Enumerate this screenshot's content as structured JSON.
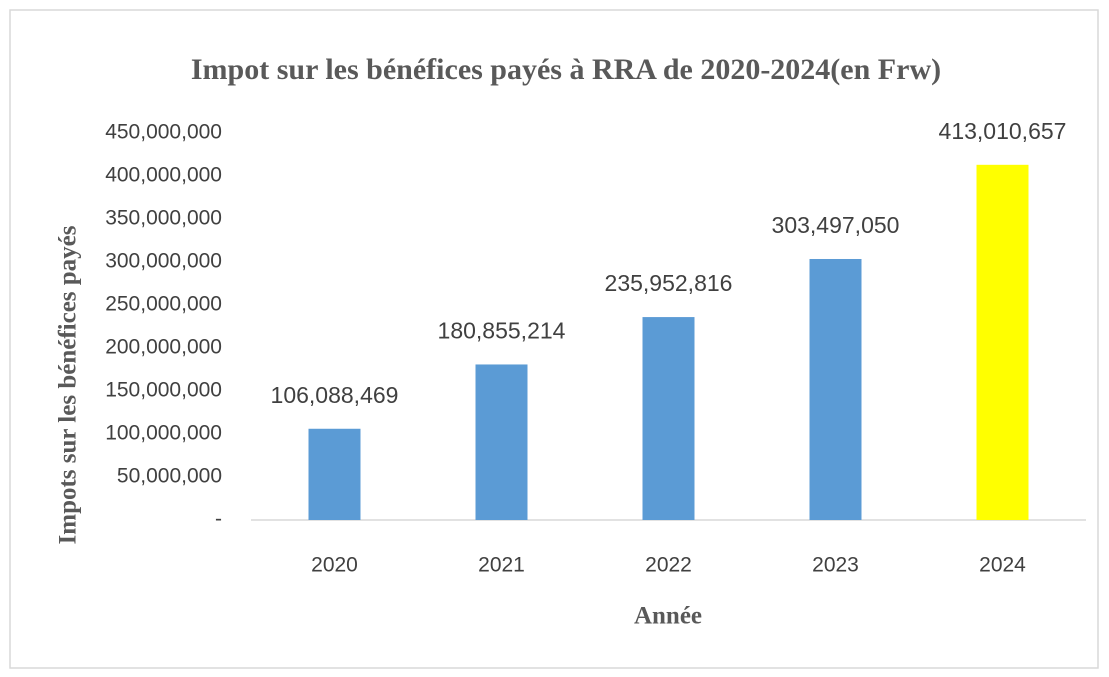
{
  "chart_data": {
    "type": "bar",
    "title": "Impot sur les bénéfices payés à RRA de 2020-2024(en Frw)",
    "x_label": "Année",
    "y_label": "Impots  sur  les bénéfices payés",
    "categories": [
      "2020",
      "2021",
      "2022",
      "2023",
      "2024"
    ],
    "values": [
      106088469,
      180855214,
      235952816,
      303497050,
      413010657
    ],
    "value_labels": [
      "106,088,469",
      "180,855,214",
      "235,952,816",
      "303,497,050",
      "413,010,657"
    ],
    "colors": [
      "#5b9bd5",
      "#5b9bd5",
      "#5b9bd5",
      "#5b9bd5",
      "#ffff00"
    ],
    "ylim": [
      0,
      450000000
    ],
    "yticks": [
      {
        "value": 0,
        "label": "-"
      },
      {
        "value": 50000000,
        "label": "50,000,000"
      },
      {
        "value": 100000000,
        "label": "100,000,000"
      },
      {
        "value": 150000000,
        "label": "150,000,000"
      },
      {
        "value": 200000000,
        "label": "200,000,000"
      },
      {
        "value": 250000000,
        "label": "250,000,000"
      },
      {
        "value": 300000000,
        "label": "300,000,000"
      },
      {
        "value": 350000000,
        "label": "350,000,000"
      },
      {
        "value": 400000000,
        "label": "400,000,000"
      },
      {
        "value": 450000000,
        "label": "450,000,000"
      }
    ],
    "grid": false
  }
}
